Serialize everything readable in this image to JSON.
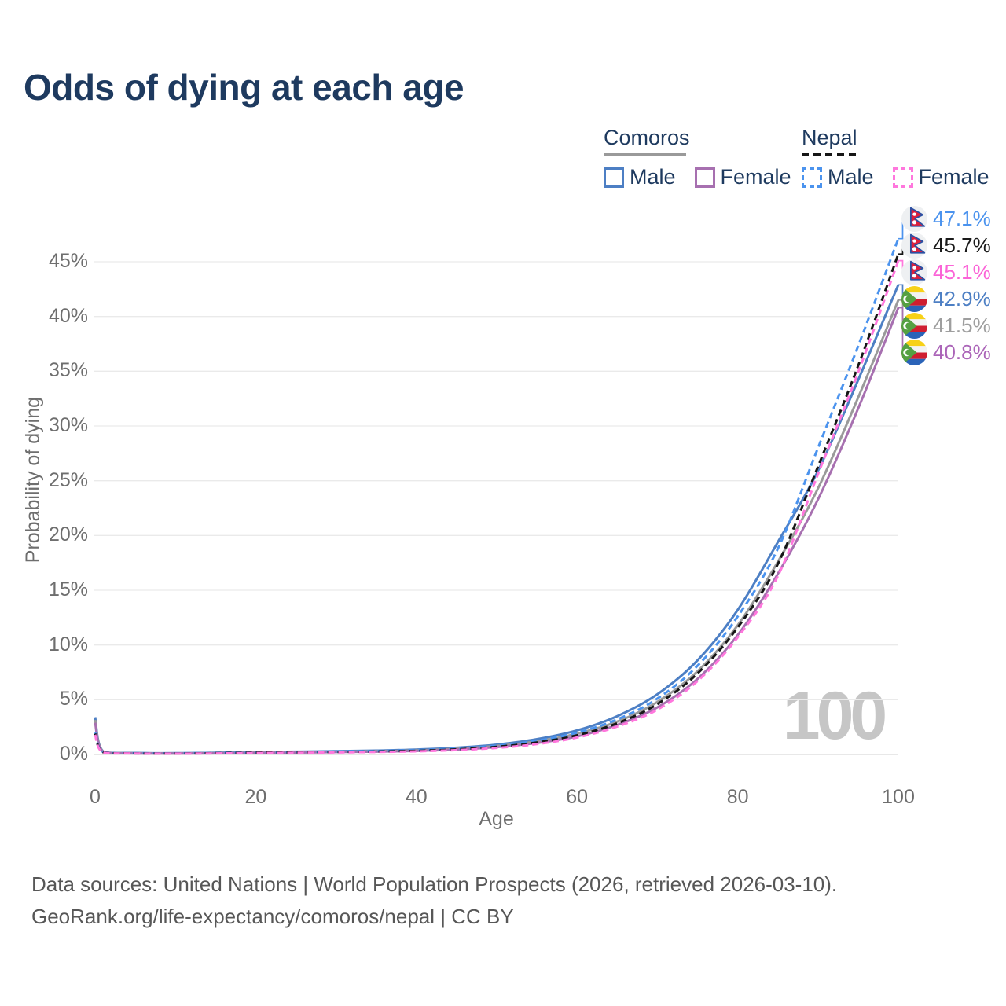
{
  "title": "Odds of dying at each age",
  "watermark": "100",
  "legend": {
    "groups": [
      {
        "name": "Comoros",
        "line_style": "solid",
        "line_color": "#9a9a9a",
        "items": [
          {
            "label": "Male",
            "color": "#4d7fc4",
            "style": "solid"
          },
          {
            "label": "Female",
            "color": "#a770b0",
            "style": "solid"
          }
        ]
      },
      {
        "name": "Nepal",
        "line_style": "dashed",
        "line_color": "#161616",
        "items": [
          {
            "label": "Male",
            "color": "#4b93ee",
            "style": "dashed"
          },
          {
            "label": "Female",
            "color": "#ff77dd",
            "style": "dashed"
          }
        ]
      }
    ]
  },
  "chart_data": {
    "type": "line",
    "title": "Odds of dying at each age",
    "xlabel": "Age",
    "ylabel": "Probability of dying",
    "xlim": [
      0,
      100
    ],
    "ylim": [
      0,
      47.5
    ],
    "grid": "horizontal",
    "legend_position": "top-right",
    "x_ticks": [
      0,
      20,
      40,
      60,
      80,
      100
    ],
    "y_ticks": [
      {
        "v": 0,
        "label": "0%"
      },
      {
        "v": 5,
        "label": "5%"
      },
      {
        "v": 10,
        "label": "10%"
      },
      {
        "v": 15,
        "label": "15%"
      },
      {
        "v": 20,
        "label": "20%"
      },
      {
        "v": 25,
        "label": "25%"
      },
      {
        "v": 30,
        "label": "30%"
      },
      {
        "v": 35,
        "label": "35%"
      },
      {
        "v": 40,
        "label": "40%"
      },
      {
        "v": 45,
        "label": "45%"
      }
    ],
    "x": [
      0,
      1,
      5,
      10,
      15,
      20,
      25,
      30,
      35,
      40,
      45,
      50,
      55,
      60,
      65,
      70,
      75,
      80,
      85,
      90,
      95,
      100
    ],
    "series": [
      {
        "name": "Comoros Male",
        "country": "Comoros",
        "group": "male",
        "color": "#4d7fc4",
        "dash": null,
        "values": [
          3.4,
          0.28,
          0.14,
          0.12,
          0.16,
          0.22,
          0.26,
          0.3,
          0.36,
          0.45,
          0.62,
          0.9,
          1.4,
          2.2,
          3.5,
          5.5,
          8.6,
          13.2,
          19.4,
          25.9,
          34.2,
          42.9
        ]
      },
      {
        "name": "Comoros Total",
        "country": "Comoros",
        "group": "total",
        "color": "#9a9a9a",
        "dash": null,
        "values": [
          3.15,
          0.25,
          0.12,
          0.1,
          0.13,
          0.18,
          0.21,
          0.25,
          0.3,
          0.38,
          0.53,
          0.78,
          1.2,
          1.9,
          3.0,
          4.8,
          7.6,
          11.8,
          17.6,
          24.3,
          32.6,
          41.5
        ]
      },
      {
        "name": "Comoros Female",
        "country": "Comoros",
        "group": "female",
        "color": "#a770b0",
        "dash": null,
        "values": [
          2.9,
          0.22,
          0.1,
          0.09,
          0.11,
          0.15,
          0.18,
          0.22,
          0.26,
          0.33,
          0.46,
          0.68,
          1.05,
          1.65,
          2.7,
          4.3,
          6.9,
          10.9,
          16.5,
          23.3,
          31.6,
          40.8
        ]
      },
      {
        "name": "Nepal Male",
        "country": "Nepal",
        "group": "male",
        "color": "#4b93ee",
        "dash": "8 5",
        "values": [
          2.0,
          0.24,
          0.12,
          0.11,
          0.14,
          0.19,
          0.23,
          0.27,
          0.32,
          0.4,
          0.55,
          0.8,
          1.25,
          2.0,
          3.2,
          5.1,
          8.1,
          12.6,
          18.8,
          28.0,
          37.3,
          47.1
        ]
      },
      {
        "name": "Nepal Total",
        "country": "Nepal",
        "group": "total",
        "color": "#161616",
        "dash": "8 5",
        "values": [
          1.9,
          0.21,
          0.1,
          0.09,
          0.12,
          0.17,
          0.2,
          0.23,
          0.27,
          0.34,
          0.47,
          0.7,
          1.1,
          1.75,
          2.85,
          4.6,
          7.4,
          11.6,
          17.4,
          26.3,
          35.5,
          45.7
        ]
      },
      {
        "name": "Nepal Female",
        "country": "Nepal",
        "group": "female",
        "color": "#ff77dd",
        "dash": "8 5",
        "values": [
          1.8,
          0.18,
          0.09,
          0.08,
          0.1,
          0.13,
          0.16,
          0.19,
          0.23,
          0.29,
          0.4,
          0.6,
          0.95,
          1.55,
          2.55,
          4.1,
          6.7,
          10.7,
          16.3,
          25.6,
          34.9,
          45.1
        ]
      }
    ]
  },
  "end_labels": [
    {
      "country": "Nepal",
      "series": "male",
      "label": "47.1%",
      "value_num": 47.1,
      "text_color": "#4b93ee",
      "line_color": "#4b93ee"
    },
    {
      "country": "Nepal",
      "series": "total",
      "label": "45.7%",
      "value_num": 45.7,
      "text_color": "#1a1a1a",
      "line_color": "#161616"
    },
    {
      "country": "Nepal",
      "series": "female",
      "label": "45.1%",
      "value_num": 45.1,
      "text_color": "#fb63d7",
      "line_color": "#ff77dd"
    },
    {
      "country": "Comoros",
      "series": "male",
      "label": "42.9%",
      "value_num": 42.9,
      "text_color": "#4d7fc4",
      "line_color": "#4d7fc4"
    },
    {
      "country": "Comoros",
      "series": "total",
      "label": "41.5%",
      "value_num": 41.5,
      "text_color": "#9e9e9e",
      "line_color": "#9a9a9a"
    },
    {
      "country": "Comoros",
      "series": "female",
      "label": "40.8%",
      "value_num": 40.8,
      "text_color": "#ab64b8",
      "line_color": "#a770b0"
    }
  ],
  "footer": {
    "line1": "Data sources: United Nations | World Population Prospects (2026, retrieved 2026-03-10).",
    "line2": "GeoRank.org/life-expectancy/comoros/nepal | CC BY"
  }
}
